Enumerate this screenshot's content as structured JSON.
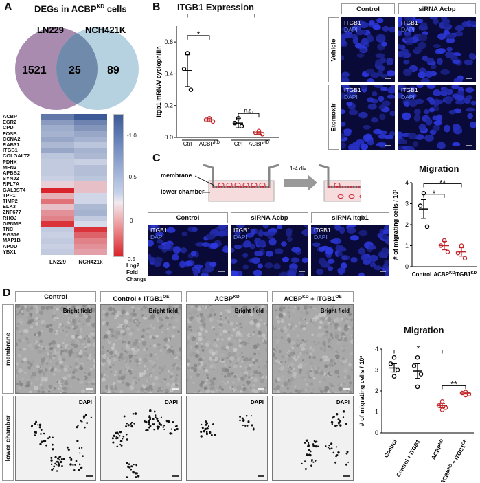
{
  "panels": {
    "A": {
      "label": "A",
      "venn_title": "DEGs in ACBP",
      "venn_title_sup": "KD",
      "venn_title_end": " cells",
      "left_set": "LN229",
      "right_set": "NCH421K",
      "left_only": "1521",
      "overlap": "25",
      "right_only": "89",
      "heatmap_genes": [
        "ACBP",
        "EGR2",
        "CPD",
        "FOSB",
        "CCNA2",
        "RAB31",
        "ITGB1",
        "COLGALT2",
        "PDHX",
        "MFN2",
        "APBB2",
        "SYNJ2",
        "RPL7A",
        "GAL3ST4",
        "TPP1",
        "TIMP2",
        "ELK3",
        "ZNF677",
        "RHOJ",
        "GPNMB",
        "TNC",
        "RGS16",
        "MAP1B",
        "APOD",
        "YBX1"
      ],
      "heatmap_columns": [
        "LN229",
        "NCH421k"
      ],
      "heatmap_values": [
        [
          -1.0,
          -1.25
        ],
        [
          -0.7,
          -0.9
        ],
        [
          -0.55,
          -0.75
        ],
        [
          -0.5,
          -0.6
        ],
        [
          -0.6,
          -0.5
        ],
        [
          -0.45,
          -0.35
        ],
        [
          -0.6,
          -0.5
        ],
        [
          -0.35,
          -0.45
        ],
        [
          -0.3,
          -0.25
        ],
        [
          -0.3,
          -0.4
        ],
        [
          -0.3,
          -0.4
        ],
        [
          -0.25,
          -0.35
        ],
        [
          0.1,
          0.15
        ],
        [
          0.65,
          0.15
        ],
        [
          0.2,
          -0.2
        ],
        [
          0.4,
          -0.2
        ],
        [
          0.15,
          -0.45
        ],
        [
          0.3,
          -0.5
        ],
        [
          0.35,
          -0.3
        ],
        [
          0.6,
          -0.15
        ],
        [
          -0.3,
          0.6
        ],
        [
          -0.25,
          0.45
        ],
        [
          -0.3,
          0.35
        ],
        [
          -0.25,
          0.3
        ],
        [
          -0.3,
          0.25
        ]
      ],
      "colorbar_ticks": [
        "-1.0",
        "-0.5",
        "0",
        "0.5"
      ],
      "colorbar_label": [
        "Log2",
        "Fold",
        "Change"
      ]
    },
    "B": {
      "label": "B",
      "title": "ITGB1 Expression",
      "ylabel": "Itgb1 mRNA/ cyclophilin",
      "yticks": [
        "0.0",
        "0.2",
        "0.4",
        "0.6"
      ],
      "ctrl_label": "Ctrl",
      "acbp_label": "ACBP",
      "kd_sup": "KD",
      "group1": "Vehicle",
      "group2": "Etomoxir",
      "sig1": "*",
      "sig2": "**",
      "sig3": "n.s.",
      "col_headers": [
        "Control",
        "siRNA Acbp"
      ],
      "row_labels": [
        "Vehicle",
        "Etomoxir"
      ],
      "stain1": "ITGB1",
      "stain2": "DAPI"
    },
    "C": {
      "label": "C",
      "membrane_label": "membrane",
      "lower_label": "lower chamber",
      "arrow_label": "1-4 div",
      "col_headers": [
        "Control",
        "siRNA Acbp",
        "siRNA Itgb1"
      ],
      "chart_title": "Migration",
      "ylabel": "# of migrating cells / 10³",
      "yticks": [
        "0",
        "1",
        "2",
        "3",
        "4"
      ],
      "xlabels": [
        "Control",
        "ACBP",
        "ITGB1"
      ],
      "kd_sup": "KD",
      "sig1": "*",
      "sig2": "**"
    },
    "D": {
      "label": "D",
      "col_headers": [
        "Control",
        "Control + ITGB1",
        "ACBP",
        "ACBP"
      ],
      "col_sups": [
        "",
        "OE",
        "KD",
        "KD"
      ],
      "col4_rest": " + ITGB1",
      "col4_sup2": "OE",
      "row_labels": [
        "membrane",
        "lower chamber"
      ],
      "bright_field": "Bright field",
      "dapi": "DAPI",
      "chart_title": "Migration",
      "ylabel": "# of migrating cells / 10³",
      "yticks": [
        "0",
        "1",
        "2",
        "3",
        "4"
      ],
      "xlabels": [
        "Control",
        "Control + ITGB1",
        "ACBP",
        "ACBP + ITGB1"
      ],
      "sig1": "*",
      "sig2": "**"
    }
  },
  "chart_data": [
    {
      "type": "scatter",
      "title": "ITGB1 Expression",
      "ylabel": "Itgb1 mRNA/ cyclophilin",
      "ylim": [
        0,
        0.7
      ],
      "categories": [
        "Ctrl Vehicle",
        "ACBP KD Vehicle",
        "Ctrl Etomoxir",
        "ACBP KD Etomoxir"
      ],
      "mean": [
        0.42,
        0.11,
        0.09,
        0.03
      ],
      "sem": [
        0.1,
        0.01,
        0.03,
        0.01
      ],
      "points": [
        [
          0.53,
          0.43,
          0.3
        ],
        [
          0.12,
          0.11,
          0.1
        ],
        [
          0.12,
          0.09,
          0.07
        ],
        [
          0.04,
          0.03,
          0.02
        ]
      ]
    },
    {
      "type": "scatter",
      "title": "Migration",
      "ylabel": "# of migrating cells / 10³",
      "ylim": [
        0,
        4
      ],
      "categories": [
        "Control",
        "ACBP KD",
        "ITGB1 KD"
      ],
      "mean": [
        2.75,
        1.0,
        0.7
      ],
      "sem": [
        0.45,
        0.2,
        0.2
      ],
      "points": [
        [
          3.5,
          2.9,
          1.9
        ],
        [
          1.25,
          1.0,
          0.7
        ],
        [
          1.0,
          0.65,
          0.4
        ]
      ]
    },
    {
      "type": "scatter",
      "title": "Migration",
      "ylabel": "# of migrating cells / 10³",
      "ylim": [
        0,
        4
      ],
      "categories": [
        "Control",
        "Control + ITGB1 OE",
        "ACBP KD",
        "ACBP KD + ITGB1 OE"
      ],
      "mean": [
        3.1,
        2.95,
        1.3,
        1.9
      ],
      "sem": [
        0.2,
        0.35,
        0.1,
        0.05
      ],
      "points": [
        [
          3.6,
          3.3,
          3.0,
          2.7
        ],
        [
          3.6,
          3.2,
          2.8,
          2.2
        ],
        [
          1.5,
          1.3,
          1.2,
          1.1
        ],
        [
          1.95,
          1.9,
          1.85,
          1.8
        ]
      ]
    }
  ],
  "colors": {
    "venn_left": "#a98bb0",
    "venn_right": "#b6d2e0",
    "venn_overlap": "#6f8aaa",
    "heat_neg": "#3e5a96",
    "heat_pos": "#d8242a",
    "black_points": "#000000",
    "red_points": "#c0262a"
  }
}
